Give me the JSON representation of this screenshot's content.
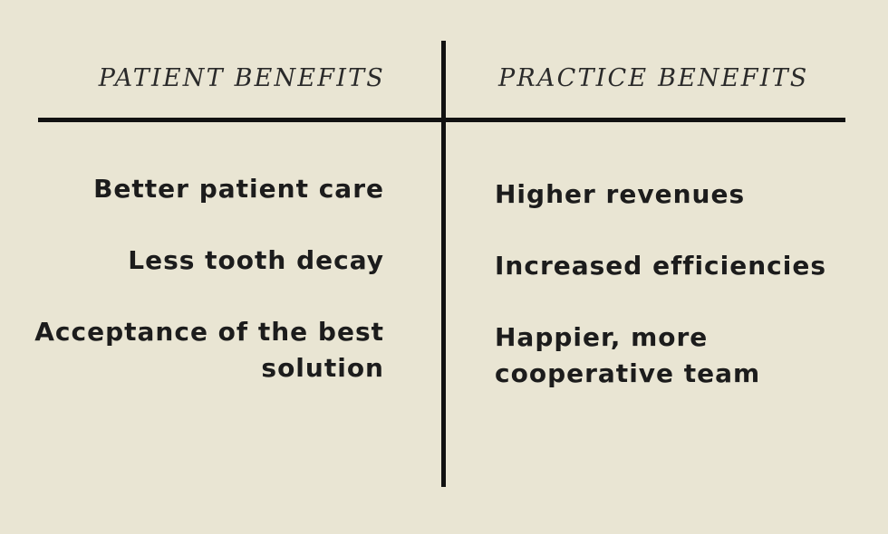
{
  "patient_column": {
    "heading": "PATIENT BENEFITS",
    "items": [
      "Better patient care",
      "Less tooth decay",
      "Acceptance of the best solution"
    ]
  },
  "practice_column": {
    "heading": "PRACTICE BENEFITS",
    "items": [
      "Higher revenues",
      "Increased efficiencies",
      "Happier, more cooperative team"
    ]
  },
  "colors": {
    "background": "#e9e5d3",
    "lines": "#111111",
    "text": "#1c1c1c"
  }
}
